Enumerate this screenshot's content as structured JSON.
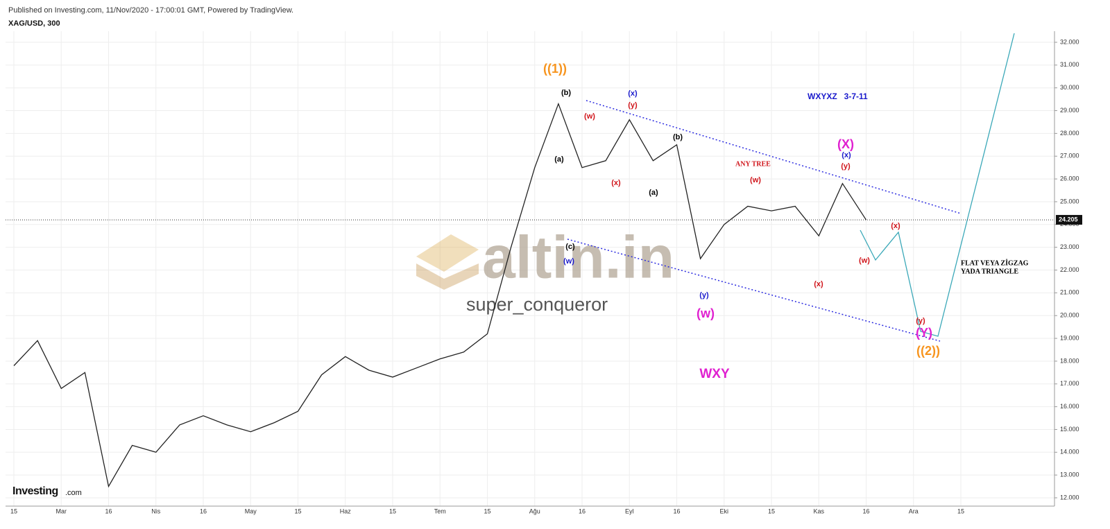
{
  "chart_data": {
    "type": "line",
    "header": "Published on Investing.com, 11/Nov/2020 - 17:00:01 GMT, Powered by TradingView.",
    "symbol": "XAG/USD, 300",
    "watermark": "altin.in",
    "author": "super_conqueror",
    "logo": "Investing",
    "logo_suffix": ".com",
    "color": "#222222",
    "categories": [
      "15",
      null,
      "Mar",
      null,
      "16",
      null,
      "Nis",
      null,
      "16",
      null,
      "May",
      null,
      "15",
      null,
      "Haz",
      null,
      "15",
      null,
      "Tem",
      null,
      "15",
      null,
      "Ağu",
      null,
      "16",
      null,
      "Eyl",
      null,
      "16",
      null,
      "Eki",
      null,
      "15",
      null,
      "Kas",
      null,
      "16",
      null,
      "Ara",
      null,
      "15"
    ],
    "values": [
      17.8,
      18.9,
      16.8,
      17.5,
      12.5,
      14.3,
      14.0,
      15.2,
      15.6,
      15.2,
      14.9,
      15.3,
      15.8,
      17.4,
      18.2,
      17.6,
      17.3,
      17.7,
      18.1,
      18.4,
      19.2,
      23.0,
      26.5,
      29.3,
      26.5,
      26.8,
      28.6,
      26.8,
      27.5,
      22.5,
      24.0,
      24.8,
      24.6,
      24.8,
      23.5,
      25.8,
      24.2,
      null,
      null,
      null,
      null
    ],
    "ylim": [
      12,
      32
    ],
    "yticks": [
      {
        "value": 12,
        "label": "12.000"
      },
      {
        "value": 13,
        "label": "13.000"
      },
      {
        "value": 14,
        "label": "14.000"
      },
      {
        "value": 15,
        "label": "15.000"
      },
      {
        "value": 16,
        "label": "16.000"
      },
      {
        "value": 17,
        "label": "17.000"
      },
      {
        "value": 18,
        "label": "18.000"
      },
      {
        "value": 19,
        "label": "19.000"
      },
      {
        "value": 20,
        "label": "20.000"
      },
      {
        "value": 21,
        "label": "21.000"
      },
      {
        "value": 22,
        "label": "22.000"
      },
      {
        "value": 23,
        "label": "23.000"
      },
      {
        "value": 24,
        "label": "24.000"
      },
      {
        "value": 25,
        "label": "25.000"
      },
      {
        "value": 26,
        "label": "26.000"
      },
      {
        "value": 27,
        "label": "27.000"
      },
      {
        "value": 28,
        "label": "28.000"
      },
      {
        "value": 29,
        "label": "29.000"
      },
      {
        "value": 30,
        "label": "30.000"
      },
      {
        "value": 31,
        "label": "31.000"
      },
      {
        "value": 32,
        "label": "32.000"
      }
    ],
    "current_price": {
      "value": 24.205,
      "label": "24.205"
    },
    "grid": true,
    "annotations": [
      {
        "text": "((1))",
        "color": "#f7941d"
      },
      {
        "text": "(b)",
        "color": "#000000"
      },
      {
        "text": "(a)",
        "color": "#000000"
      },
      {
        "text": "(c)",
        "color": "#000000"
      },
      {
        "text": "(w)",
        "color": "#1a1acc"
      },
      {
        "text": "(w)",
        "color": "#d0141a"
      },
      {
        "text": "(x)",
        "color": "#d0141a"
      },
      {
        "text": "(x)",
        "color": "#1a1acc"
      },
      {
        "text": "(y)",
        "color": "#d0141a"
      },
      {
        "text": "(a)",
        "color": "#000000"
      },
      {
        "text": "(b)",
        "color": "#000000"
      },
      {
        "text": "(y)",
        "color": "#1a1acc"
      },
      {
        "text": "(w)",
        "color": "#e020d0"
      },
      {
        "text": "WXY",
        "color": "#e020d0"
      },
      {
        "text": "WXYXZ   3-7-11",
        "color": "#1a1acc"
      },
      {
        "text": "ANY TREE",
        "color": "#d0141a"
      },
      {
        "text": "(w)",
        "color": "#d0141a"
      },
      {
        "text": "(X)",
        "color": "#e020d0"
      },
      {
        "text": "(x)",
        "color": "#1a1acc"
      },
      {
        "text": "(y)",
        "color": "#d0141a"
      },
      {
        "text": "(x)",
        "color": "#d0141a"
      },
      {
        "text": "(x)",
        "color": "#d0141a"
      },
      {
        "text": "(w)",
        "color": "#d0141a"
      },
      {
        "text": "(y)",
        "color": "#d0141a"
      },
      {
        "text": "(Y)",
        "color": "#e020d0"
      },
      {
        "text": "((2))",
        "color": "#f7941d"
      },
      {
        "text": "FLAT VEYA ZİGZAG",
        "color": "#000000"
      },
      {
        "text": "YADA TRIANGLE",
        "color": "#000000"
      }
    ]
  }
}
